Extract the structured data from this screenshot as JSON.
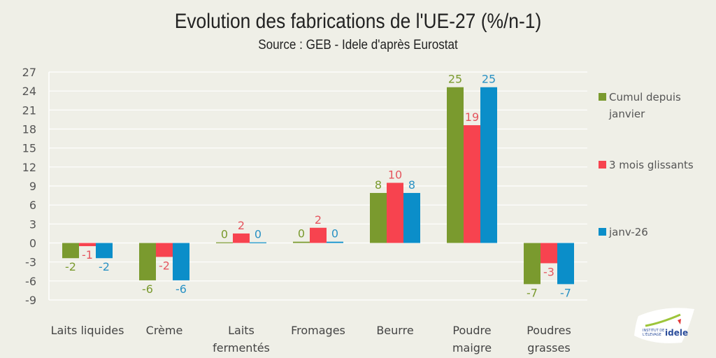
{
  "title": "Evolution des fabrications de l'UE-27 (%/n-1)",
  "subtitle": "Source : GEB - Idele d'après Eurostat",
  "logo_text": [
    "INSTITUT DE",
    "L'ÉLEVAGE",
    "idele"
  ],
  "chart_data": {
    "type": "bar",
    "title": "Evolution des fabrications de l'UE-27 (%/n-1)",
    "subtitle": "Source : GEB - Idele d'après Eurostat",
    "xlabel": "",
    "ylabel": "",
    "ylim": [
      -9,
      27
    ],
    "yticks": [
      27,
      24,
      21,
      18,
      15,
      12,
      9,
      6,
      3,
      0,
      -3,
      -6,
      -9
    ],
    "grid": true,
    "legend_position": "right",
    "categories": [
      "Laits liquides",
      "Crème",
      "Laits fermentés",
      "Fromages",
      "Beurre",
      "Poudre maigre",
      "Poudres grasses"
    ],
    "series": [
      {
        "name": "Cumul depuis janvier",
        "color": "#7a9a2e",
        "values": [
          -2.4,
          -5.9,
          0.1,
          0.2,
          7.9,
          24.6,
          -6.5
        ],
        "labels": [
          "-2",
          "-6",
          "0",
          "0",
          "8",
          "25",
          "-7"
        ]
      },
      {
        "name": "3 mois glissants",
        "color": "#f7434f",
        "values": [
          -0.5,
          -2.2,
          1.5,
          2.4,
          9.5,
          18.6,
          -3.2
        ],
        "labels": [
          "-1",
          "-2",
          "2",
          "2",
          "10",
          "19",
          "-3"
        ]
      },
      {
        "name": "janv-26",
        "color": "#0b8ec9",
        "values": [
          -2.4,
          -5.9,
          0.1,
          0.2,
          7.9,
          24.6,
          -6.5
        ],
        "labels": [
          "-2",
          "-6",
          "0",
          "0",
          "8",
          "25",
          "-7"
        ]
      }
    ]
  }
}
